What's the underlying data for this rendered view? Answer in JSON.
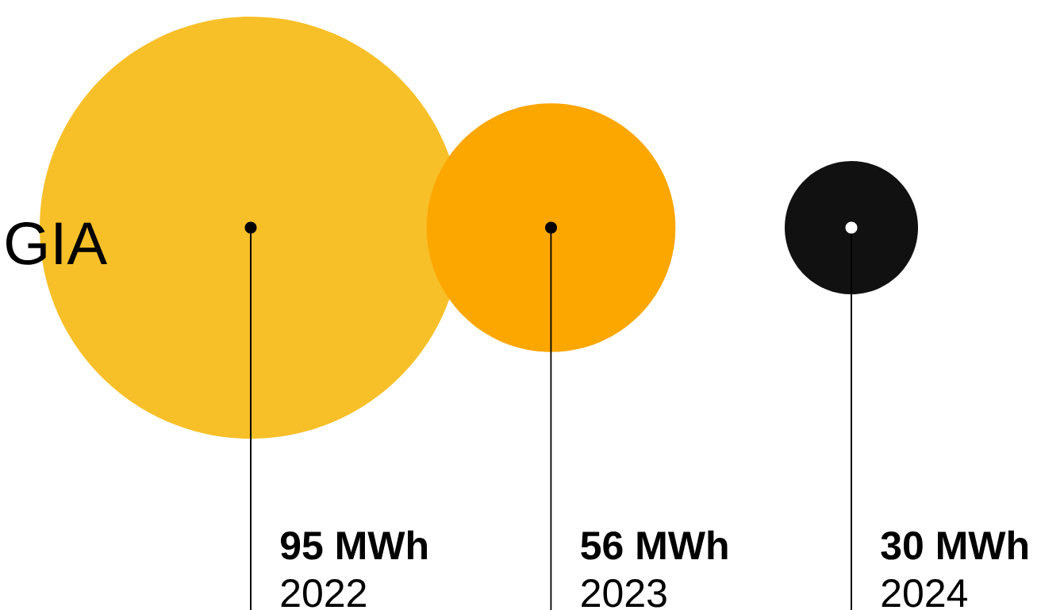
{
  "chart_data": {
    "type": "other",
    "categories": [
      "2022",
      "2023",
      "2024"
    ],
    "values": [
      95,
      56,
      30
    ],
    "value_labels": [
      "95 MWh",
      "56 MWh",
      "30 MWh"
    ],
    "colors": [
      "#f7c028",
      "#fca600",
      "#111111"
    ],
    "annotations": [
      "GIA"
    ]
  }
}
